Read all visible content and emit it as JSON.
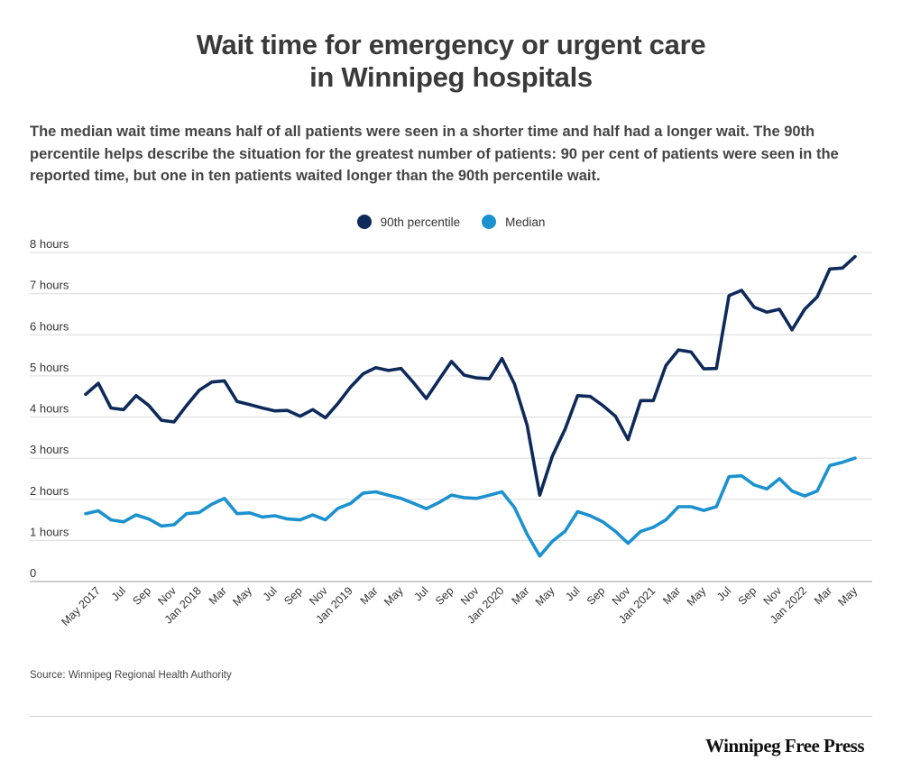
{
  "header": {
    "title_line1": "Wait time for emergency or urgent care",
    "title_line2": "in Winnipeg hospitals",
    "subtitle": "The median wait time means half of all patients were seen in a shorter time and half had a longer wait. The 90th percentile helps describe the situation for the greatest number of patients: 90 per cent of patients were seen in the reported time, but one in ten patients waited longer than the 90th percentile wait."
  },
  "footer": {
    "source": "Source: Winnipeg Regional Health Authority",
    "brand": "Winnipeg Free Press"
  },
  "chart_data": {
    "type": "line",
    "legend_position": "top-center",
    "grid": true,
    "ylim": [
      0,
      8
    ],
    "yticks": [
      {
        "value": 0,
        "label": "0"
      },
      {
        "value": 1,
        "label": "1 hours"
      },
      {
        "value": 2,
        "label": "2 hours"
      },
      {
        "value": 3,
        "label": "3 hours"
      },
      {
        "value": 4,
        "label": "4 hours"
      },
      {
        "value": 5,
        "label": "5 hours"
      },
      {
        "value": 6,
        "label": "6 hours"
      },
      {
        "value": 7,
        "label": "7 hours"
      },
      {
        "value": 8,
        "label": "8 hours"
      }
    ],
    "x": [
      "2017-04",
      "2017-05",
      "2017-06",
      "2017-07",
      "2017-08",
      "2017-09",
      "2017-10",
      "2017-11",
      "2017-12",
      "2018-01",
      "2018-02",
      "2018-03",
      "2018-04",
      "2018-05",
      "2018-06",
      "2018-07",
      "2018-08",
      "2018-09",
      "2018-10",
      "2018-11",
      "2018-12",
      "2019-01",
      "2019-02",
      "2019-03",
      "2019-04",
      "2019-05",
      "2019-06",
      "2019-07",
      "2019-08",
      "2019-09",
      "2019-10",
      "2019-11",
      "2019-12",
      "2020-01",
      "2020-02",
      "2020-03",
      "2020-04",
      "2020-05",
      "2020-06",
      "2020-07",
      "2020-08",
      "2020-09",
      "2020-10",
      "2020-11",
      "2020-12",
      "2021-01",
      "2021-02",
      "2021-03",
      "2021-04",
      "2021-05",
      "2021-06",
      "2021-07",
      "2021-08",
      "2021-09",
      "2021-10",
      "2021-11",
      "2021-12",
      "2022-01",
      "2022-02",
      "2022-03",
      "2022-04",
      "2022-05"
    ],
    "x_tick_labels": [
      {
        "x": "2017-05",
        "label": "May 2017"
      },
      {
        "x": "2017-07",
        "label": "Jul"
      },
      {
        "x": "2017-09",
        "label": "Sep"
      },
      {
        "x": "2017-11",
        "label": "Nov"
      },
      {
        "x": "2018-01",
        "label": "Jan 2018"
      },
      {
        "x": "2018-03",
        "label": "Mar"
      },
      {
        "x": "2018-05",
        "label": "May"
      },
      {
        "x": "2018-07",
        "label": "Jul"
      },
      {
        "x": "2018-09",
        "label": "Sep"
      },
      {
        "x": "2018-11",
        "label": "Nov"
      },
      {
        "x": "2019-01",
        "label": "Jan 2019"
      },
      {
        "x": "2019-03",
        "label": "Mar"
      },
      {
        "x": "2019-05",
        "label": "May"
      },
      {
        "x": "2019-07",
        "label": "Jul"
      },
      {
        "x": "2019-09",
        "label": "Sep"
      },
      {
        "x": "2019-11",
        "label": "Nov"
      },
      {
        "x": "2020-01",
        "label": "Jan 2020"
      },
      {
        "x": "2020-03",
        "label": "Mar"
      },
      {
        "x": "2020-05",
        "label": "May"
      },
      {
        "x": "2020-07",
        "label": "Jul"
      },
      {
        "x": "2020-09",
        "label": "Sep"
      },
      {
        "x": "2020-11",
        "label": "Nov"
      },
      {
        "x": "2021-01",
        "label": "Jan 2021"
      },
      {
        "x": "2021-03",
        "label": "Mar"
      },
      {
        "x": "2021-05",
        "label": "May"
      },
      {
        "x": "2021-07",
        "label": "Jul"
      },
      {
        "x": "2021-09",
        "label": "Sep"
      },
      {
        "x": "2021-11",
        "label": "Nov"
      },
      {
        "x": "2022-01",
        "label": "Jan 2022"
      },
      {
        "x": "2022-03",
        "label": "Mar"
      },
      {
        "x": "2022-05",
        "label": "May"
      }
    ],
    "series": [
      {
        "name": "90th percentile",
        "color": "#0e2a5a",
        "values": [
          4.55,
          4.82,
          4.22,
          4.18,
          4.52,
          4.28,
          3.92,
          3.88,
          4.28,
          4.65,
          4.85,
          4.88,
          4.38,
          4.3,
          4.22,
          4.15,
          4.16,
          4.02,
          4.18,
          3.98,
          4.33,
          4.73,
          5.05,
          5.2,
          5.13,
          5.18,
          4.83,
          4.45,
          4.9,
          5.35,
          5.02,
          4.95,
          4.93,
          5.42,
          4.8,
          3.8,
          2.1,
          3.05,
          3.7,
          4.52,
          4.5,
          4.28,
          4.02,
          3.45,
          4.4,
          4.4,
          5.25,
          5.63,
          5.58,
          5.17,
          5.18,
          6.95,
          7.08,
          6.67,
          6.55,
          6.62,
          6.12,
          6.62,
          6.92,
          7.6,
          7.62,
          7.9
        ]
      },
      {
        "name": "Median",
        "color": "#1b92cf",
        "values": [
          1.65,
          1.72,
          1.5,
          1.45,
          1.62,
          1.52,
          1.35,
          1.38,
          1.65,
          1.68,
          1.88,
          2.02,
          1.65,
          1.67,
          1.57,
          1.6,
          1.52,
          1.5,
          1.62,
          1.5,
          1.78,
          1.9,
          2.15,
          2.18,
          2.1,
          2.02,
          1.9,
          1.77,
          1.92,
          2.1,
          2.04,
          2.02,
          2.1,
          2.18,
          1.8,
          1.15,
          0.62,
          0.98,
          1.22,
          1.7,
          1.6,
          1.45,
          1.22,
          0.93,
          1.22,
          1.32,
          1.5,
          1.82,
          1.82,
          1.73,
          1.82,
          2.55,
          2.57,
          2.35,
          2.25,
          2.5,
          2.2,
          2.08,
          2.2,
          2.82,
          2.9,
          3.0
        ]
      }
    ]
  }
}
